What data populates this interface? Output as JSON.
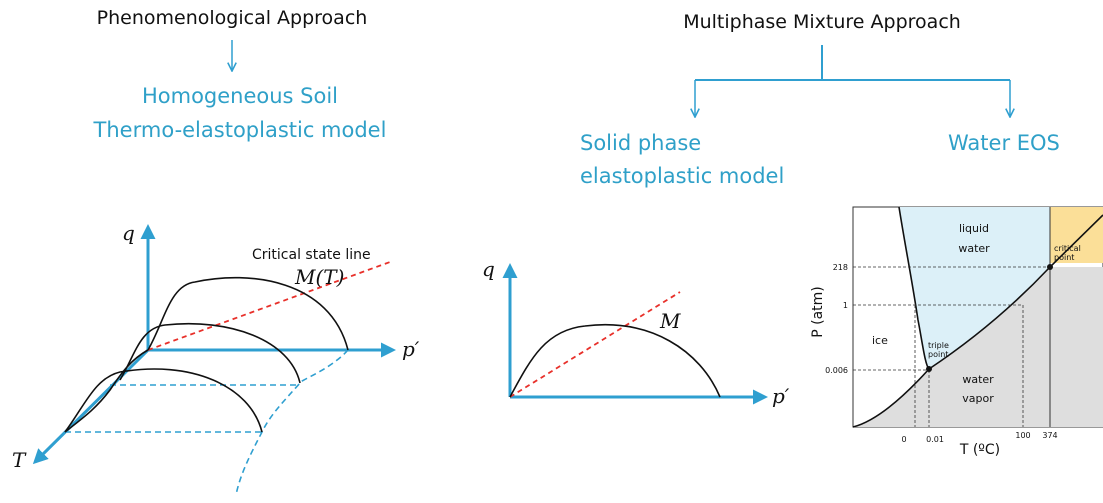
{
  "left": {
    "title": "Phenomenological Approach",
    "model": [
      "Homogeneous Soil",
      "Thermo-elastoplastic model"
    ],
    "diagram": {
      "q_axis": "q",
      "p_axis": "p′",
      "t_axis": "T",
      "line_label": "Critical state line",
      "slope_label": "M(T)"
    }
  },
  "right": {
    "title": "Multiphase Mixture Approach",
    "solid": [
      "Solid phase",
      "elastoplastic model"
    ],
    "water": "Water EOS",
    "diagram": {
      "q_axis": "q",
      "p_axis": "p′",
      "slope_label": "M"
    }
  },
  "phase_diagram": {
    "regions": {
      "liquid": [
        "liquid",
        "water"
      ],
      "ice": "ice",
      "vapor": [
        "water",
        "vapor"
      ]
    },
    "critical": [
      "critical",
      "point"
    ],
    "triple": [
      "triple",
      "point"
    ],
    "y_label": "P (atm)",
    "x_label": "T (ºC)",
    "y_ticks": [
      "218",
      "1",
      "0.006"
    ],
    "x_ticks": [
      "0",
      "0.01",
      "100",
      "374"
    ]
  }
}
